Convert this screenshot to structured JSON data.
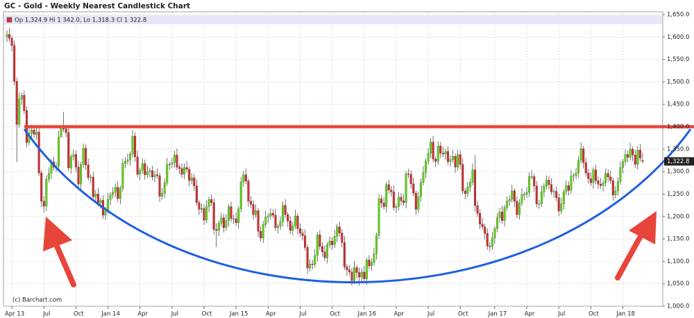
{
  "chart_data": {
    "type": "candlestick",
    "title": "GC - Gold - Weekly Nearest Candlestick Chart",
    "legend_text": "Op 1,324.9 Hi 1 342.0, Lo 1,318.3 Cl 1 322.8",
    "last_label": "1,322.8",
    "copyright": "(c) Barchart.com",
    "up_color": "#66cc22",
    "down_color": "#cc3333",
    "resistance": 1400,
    "resistance_color": "#e8453a",
    "grid": true,
    "ylim": [
      1000,
      1650
    ],
    "yticks": [
      {
        "value": 1000,
        "label": "1,000.0"
      },
      {
        "value": 1050,
        "label": "1,050.0"
      },
      {
        "value": 1100,
        "label": "1,100.0"
      },
      {
        "value": 1150,
        "label": "1,150.0"
      },
      {
        "value": 1200,
        "label": "1,200.0"
      },
      {
        "value": 1250,
        "label": "1,250.0"
      },
      {
        "value": 1300,
        "label": "1,300.0"
      },
      {
        "value": 1350,
        "label": "1,350.0"
      },
      {
        "value": 1400,
        "label": "1,400.0"
      },
      {
        "value": 1450,
        "label": "1,450.0"
      },
      {
        "value": 1500,
        "label": "1,500.0"
      },
      {
        "value": 1550,
        "label": "1,550.0"
      },
      {
        "value": 1600,
        "label": "1,600.0"
      },
      {
        "value": 1650,
        "label": "1,650.0"
      }
    ],
    "xticks": [
      {
        "value": 2,
        "label": "Apr 13"
      },
      {
        "value": 15,
        "label": "Jul"
      },
      {
        "value": 28,
        "label": "Oct"
      },
      {
        "value": 41,
        "label": "Jan 14"
      },
      {
        "value": 54,
        "label": "Apr"
      },
      {
        "value": 67,
        "label": "Jul"
      },
      {
        "value": 80,
        "label": "Oct"
      },
      {
        "value": 93,
        "label": "Jan 15"
      },
      {
        "value": 106,
        "label": "Apr"
      },
      {
        "value": 119,
        "label": "Jul"
      },
      {
        "value": 132,
        "label": "Oct"
      },
      {
        "value": 145,
        "label": "Jan 16"
      },
      {
        "value": 158,
        "label": "Apr"
      },
      {
        "value": 171,
        "label": "Jul"
      },
      {
        "value": 184,
        "label": "Oct"
      },
      {
        "value": 198,
        "label": "Jan 17"
      },
      {
        "value": 211,
        "label": "Apr"
      },
      {
        "value": 224,
        "label": "Jul"
      },
      {
        "value": 237,
        "label": "Oct"
      },
      {
        "value": 250,
        "label": "Jan 18"
      }
    ],
    "open": [
      1600,
      1606,
      1597,
      1581,
      1501,
      1405,
      1462,
      1470,
      1436,
      1365,
      1386,
      1393,
      1383,
      1388,
      1297,
      1234,
      1223,
      1283,
      1296,
      1322,
      1310,
      1312,
      1377,
      1396,
      1395,
      1387,
      1308,
      1333,
      1338,
      1310,
      1272,
      1316,
      1352,
      1315,
      1287,
      1288,
      1244,
      1250,
      1230,
      1236,
      1203,
      1213,
      1238,
      1248,
      1254,
      1265,
      1240,
      1263,
      1318,
      1323,
      1326,
      1339,
      1379,
      1333,
      1294,
      1303,
      1318,
      1293,
      1300,
      1302,
      1288,
      1293,
      1291,
      1245,
      1252,
      1275,
      1316,
      1316,
      1320,
      1337,
      1310,
      1307,
      1294,
      1309,
      1305,
      1280,
      1286,
      1268,
      1231,
      1216,
      1218,
      1192,
      1222,
      1238,
      1231,
      1171,
      1169,
      1185,
      1197,
      1175,
      1191,
      1222,
      1195,
      1195,
      1186,
      1217,
      1277,
      1293,
      1279,
      1234,
      1227,
      1204,
      1213,
      1167,
      1152,
      1182,
      1199,
      1201,
      1207,
      1203,
      1175,
      1178,
      1189,
      1225,
      1204,
      1190,
      1169,
      1179,
      1201,
      1173,
      1163,
      1157,
      1131,
      1085,
      1094,
      1093,
      1113,
      1159,
      1133,
      1121,
      1108,
      1137,
      1145,
      1137,
      1156,
      1177,
      1163,
      1142,
      1088,
      1081,
      1076,
      1057,
      1086,
      1075,
      1065,
      1076,
      1061,
      1103,
      1090,
      1097,
      1117,
      1158,
      1239,
      1230,
      1222,
      1271,
      1259,
      1255,
      1220,
      1222,
      1243,
      1235,
      1231,
      1295,
      1294,
      1273,
      1252,
      1216,
      1244,
      1276,
      1298,
      1323,
      1341,
      1366,
      1328,
      1323,
      1357,
      1341,
      1339,
      1345,
      1322,
      1327,
      1334,
      1310,
      1338,
      1316,
      1257,
      1251,
      1266,
      1276,
      1304,
      1224,
      1207,
      1183,
      1177,
      1162,
      1134,
      1133,
      1152,
      1173,
      1197,
      1210,
      1191,
      1220,
      1234,
      1238,
      1257,
      1234,
      1204,
      1230,
      1249,
      1249,
      1254,
      1289,
      1289,
      1268,
      1228,
      1228,
      1255,
      1268,
      1281,
      1271,
      1255,
      1256,
      1242,
      1212,
      1228,
      1255,
      1269,
      1258,
      1290,
      1291,
      1297,
      1325,
      1351,
      1320,
      1297,
      1284,
      1275,
      1304,
      1280,
      1272,
      1269,
      1275,
      1296,
      1288,
      1280,
      1248,
      1257,
      1278,
      1309,
      1322,
      1338,
      1332,
      1350,
      1337,
      1316,
      1348,
      1324.9
    ],
    "high": [
      1615,
      1620,
      1603,
      1592,
      1510,
      1476,
      1476,
      1481,
      1445,
      1400,
      1399,
      1404,
      1397,
      1402,
      1303,
      1245,
      1292,
      1310,
      1328,
      1333,
      1321,
      1391,
      1402,
      1433,
      1404,
      1401,
      1339,
      1349,
      1347,
      1324,
      1322,
      1363,
      1361,
      1329,
      1294,
      1299,
      1259,
      1264,
      1242,
      1247,
      1222,
      1252,
      1254,
      1265,
      1274,
      1279,
      1269,
      1329,
      1332,
      1340,
      1345,
      1392,
      1388,
      1347,
      1309,
      1329,
      1327,
      1314,
      1308,
      1313,
      1302,
      1307,
      1297,
      1263,
      1284,
      1330,
      1322,
      1331,
      1346,
      1351,
      1316,
      1318,
      1318,
      1323,
      1311,
      1297,
      1295,
      1282,
      1237,
      1229,
      1227,
      1236,
      1244,
      1249,
      1240,
      1185,
      1191,
      1208,
      1206,
      1205,
      1228,
      1233,
      1204,
      1209,
      1223,
      1288,
      1302,
      1307,
      1285,
      1245,
      1236,
      1227,
      1219,
      1178,
      1191,
      1213,
      1207,
      1218,
      1216,
      1217,
      1184,
      1200,
      1234,
      1239,
      1210,
      1201,
      1188,
      1215,
      1207,
      1184,
      1172,
      1171,
      1137,
      1105,
      1103,
      1127,
      1165,
      1170,
      1142,
      1135,
      1143,
      1156,
      1154,
      1170,
      1183,
      1188,
      1172,
      1156,
      1094,
      1092,
      1085,
      1100,
      1092,
      1086,
      1085,
      1090,
      1109,
      1114,
      1106,
      1131,
      1164,
      1250,
      1248,
      1244,
      1277,
      1282,
      1268,
      1269,
      1228,
      1254,
      1252,
      1249,
      1301,
      1306,
      1303,
      1287,
      1258,
      1255,
      1285,
      1312,
      1329,
      1352,
      1375,
      1380,
      1334,
      1368,
      1366,
      1355,
      1351,
      1356,
      1336,
      1348,
      1340,
      1349,
      1347,
      1330,
      1263,
      1277,
      1285,
      1318,
      1337,
      1235,
      1216,
      1197,
      1183,
      1173,
      1143,
      1166,
      1179,
      1208,
      1219,
      1224,
      1226,
      1245,
      1247,
      1271,
      1263,
      1245,
      1239,
      1263,
      1255,
      1265,
      1298,
      1303,
      1295,
      1279,
      1237,
      1269,
      1274,
      1292,
      1290,
      1285,
      1262,
      1267,
      1251,
      1242,
      1261,
      1280,
      1278,
      1304,
      1297,
      1308,
      1334,
      1365,
      1357,
      1331,
      1306,
      1298,
      1310,
      1315,
      1289,
      1286,
      1281,
      1307,
      1305,
      1302,
      1286,
      1268,
      1287,
      1323,
      1328,
      1349,
      1347,
      1364,
      1356,
      1348,
      1357,
      1362,
      1342
    ],
    "low": [
      1589,
      1590,
      1568,
      1493,
      1321,
      1398,
      1449,
      1428,
      1354,
      1358,
      1373,
      1375,
      1372,
      1290,
      1221,
      1208,
      1212,
      1276,
      1283,
      1302,
      1299,
      1305,
      1383,
      1388,
      1376,
      1301,
      1295,
      1325,
      1299,
      1265,
      1259,
      1308,
      1304,
      1280,
      1274,
      1236,
      1233,
      1223,
      1217,
      1195,
      1192,
      1206,
      1225,
      1240,
      1243,
      1233,
      1227,
      1255,
      1307,
      1316,
      1313,
      1331,
      1322,
      1287,
      1281,
      1295,
      1282,
      1286,
      1287,
      1280,
      1277,
      1284,
      1232,
      1237,
      1241,
      1268,
      1303,
      1308,
      1309,
      1303,
      1294,
      1286,
      1283,
      1298,
      1267,
      1272,
      1257,
      1224,
      1203,
      1208,
      1181,
      1185,
      1209,
      1223,
      1160,
      1132,
      1156,
      1177,
      1164,
      1168,
      1178,
      1187,
      1184,
      1179,
      1173,
      1209,
      1266,
      1272,
      1221,
      1219,
      1193,
      1197,
      1154,
      1144,
      1141,
      1175,
      1186,
      1193,
      1196,
      1168,
      1162,
      1170,
      1178,
      1197,
      1177,
      1161,
      1158,
      1172,
      1160,
      1155,
      1146,
      1124,
      1072,
      1077,
      1082,
      1086,
      1100,
      1125,
      1110,
      1101,
      1095,
      1129,
      1126,
      1130,
      1143,
      1155,
      1131,
      1081,
      1068,
      1068,
      1046,
      1050,
      1062,
      1046,
      1054,
      1054,
      1048,
      1082,
      1079,
      1090,
      1104,
      1150,
      1219,
      1215,
      1209,
      1251,
      1244,
      1213,
      1207,
      1214,
      1224,
      1224,
      1218,
      1286,
      1262,
      1245,
      1203,
      1208,
      1233,
      1269,
      1285,
      1315,
      1330,
      1321,
      1310,
      1315,
      1330,
      1332,
      1326,
      1314,
      1311,
      1320,
      1297,
      1302,
      1305,
      1250,
      1238,
      1243,
      1255,
      1269,
      1211,
      1199,
      1172,
      1170,
      1149,
      1126,
      1122,
      1126,
      1139,
      1165,
      1186,
      1184,
      1178,
      1212,
      1223,
      1231,
      1221,
      1196,
      1193,
      1223,
      1236,
      1241,
      1243,
      1282,
      1255,
      1220,
      1217,
      1221,
      1242,
      1260,
      1260,
      1248,
      1242,
      1234,
      1201,
      1205,
      1215,
      1247,
      1247,
      1251,
      1277,
      1283,
      1286,
      1318,
      1307,
      1289,
      1273,
      1268,
      1262,
      1272,
      1261,
      1262,
      1256,
      1267,
      1277,
      1273,
      1235,
      1240,
      1246,
      1271,
      1296,
      1314,
      1321,
      1325,
      1324,
      1308,
      1305,
      1323,
      1318.3
    ],
    "close": [
      1606,
      1597,
      1581,
      1501,
      1405,
      1462,
      1470,
      1436,
      1365,
      1386,
      1393,
      1383,
      1388,
      1297,
      1234,
      1223,
      1283,
      1296,
      1322,
      1310,
      1312,
      1377,
      1396,
      1395,
      1387,
      1308,
      1333,
      1338,
      1310,
      1272,
      1316,
      1352,
      1315,
      1287,
      1288,
      1244,
      1250,
      1230,
      1236,
      1203,
      1213,
      1238,
      1248,
      1254,
      1265,
      1240,
      1263,
      1318,
      1323,
      1326,
      1339,
      1379,
      1333,
      1294,
      1303,
      1318,
      1293,
      1300,
      1302,
      1288,
      1293,
      1291,
      1245,
      1252,
      1275,
      1316,
      1316,
      1320,
      1337,
      1310,
      1307,
      1294,
      1309,
      1305,
      1280,
      1286,
      1268,
      1231,
      1216,
      1218,
      1192,
      1222,
      1238,
      1231,
      1171,
      1169,
      1185,
      1197,
      1175,
      1191,
      1222,
      1195,
      1195,
      1186,
      1217,
      1277,
      1293,
      1279,
      1234,
      1227,
      1204,
      1213,
      1167,
      1152,
      1182,
      1199,
      1201,
      1207,
      1203,
      1175,
      1178,
      1189,
      1225,
      1204,
      1190,
      1169,
      1179,
      1201,
      1173,
      1163,
      1157,
      1131,
      1085,
      1094,
      1093,
      1113,
      1159,
      1133,
      1121,
      1108,
      1137,
      1145,
      1137,
      1156,
      1177,
      1163,
      1142,
      1088,
      1081,
      1076,
      1057,
      1086,
      1075,
      1065,
      1076,
      1061,
      1103,
      1090,
      1097,
      1117,
      1158,
      1239,
      1230,
      1222,
      1271,
      1259,
      1255,
      1220,
      1222,
      1243,
      1235,
      1231,
      1295,
      1294,
      1273,
      1252,
      1216,
      1244,
      1276,
      1298,
      1323,
      1341,
      1366,
      1328,
      1323,
      1357,
      1341,
      1339,
      1345,
      1322,
      1327,
      1334,
      1310,
      1338,
      1316,
      1257,
      1251,
      1266,
      1276,
      1304,
      1224,
      1207,
      1183,
      1177,
      1162,
      1134,
      1133,
      1152,
      1173,
      1197,
      1210,
      1191,
      1220,
      1234,
      1238,
      1257,
      1234,
      1204,
      1230,
      1249,
      1249,
      1254,
      1289,
      1289,
      1268,
      1228,
      1228,
      1255,
      1268,
      1281,
      1271,
      1255,
      1256,
      1242,
      1212,
      1228,
      1255,
      1269,
      1258,
      1290,
      1291,
      1297,
      1325,
      1351,
      1320,
      1297,
      1284,
      1275,
      1304,
      1280,
      1272,
      1269,
      1275,
      1296,
      1288,
      1280,
      1248,
      1257,
      1278,
      1309,
      1322,
      1338,
      1332,
      1350,
      1337,
      1316,
      1348,
      1330,
      1322.8
    ]
  }
}
